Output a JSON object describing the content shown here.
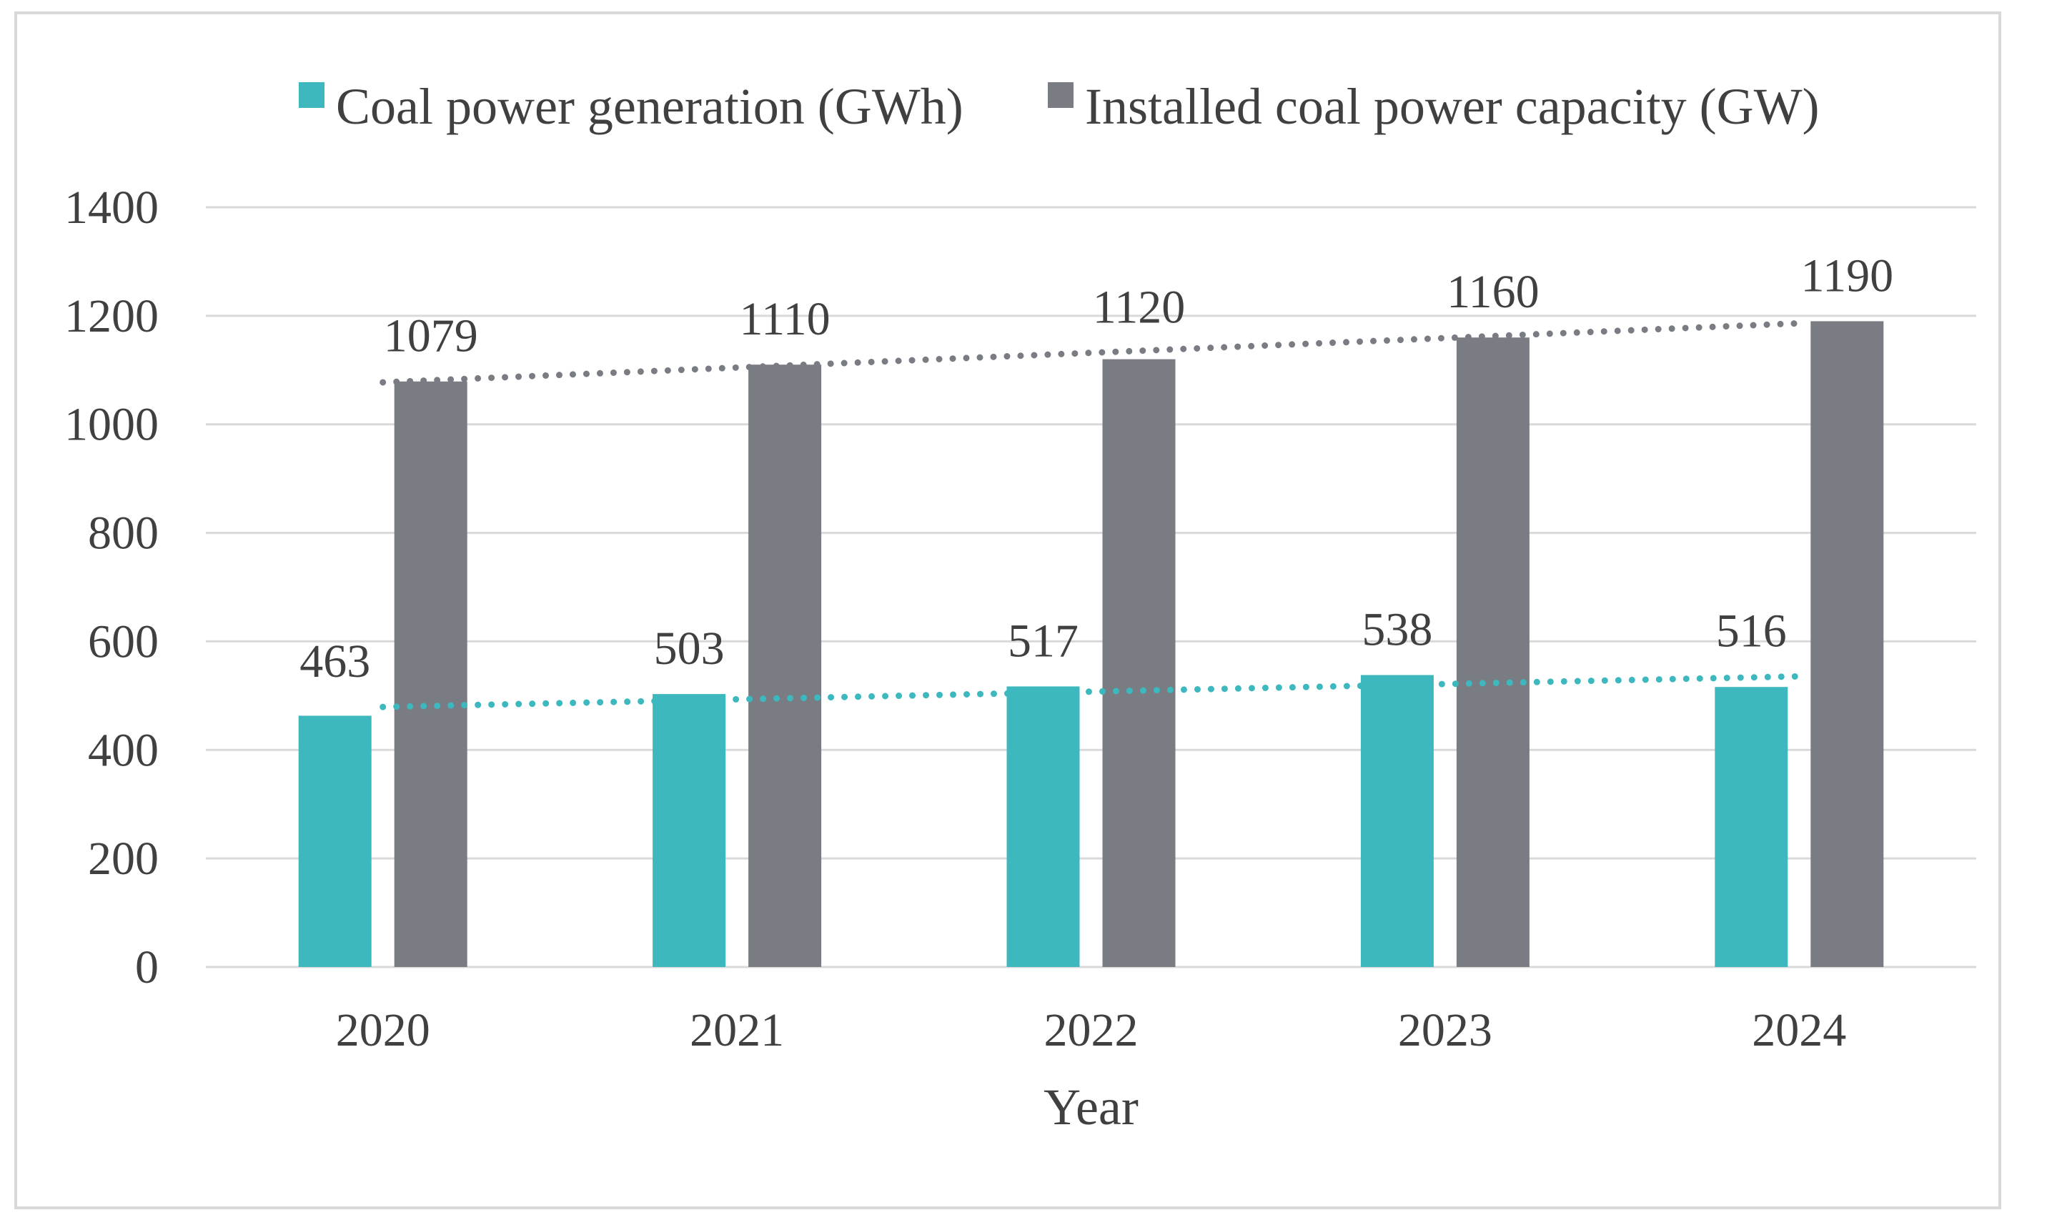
{
  "chart_data": {
    "type": "bar",
    "title": "",
    "xlabel": "Year",
    "ylabel": "",
    "categories": [
      "2020",
      "2021",
      "2022",
      "2023",
      "2024"
    ],
    "series": [
      {
        "name": "Coal power generation (GWh)",
        "color": "#3cb8be",
        "values": [
          463,
          503,
          517,
          538,
          516
        ],
        "labels": [
          "463",
          "503",
          "517",
          "538",
          "516"
        ],
        "trendline": {
          "type": "linear",
          "style": "dotted"
        }
      },
      {
        "name": "Installed coal power capacity (GW)",
        "color": "#7a7c84",
        "values": [
          1079,
          1110,
          1120,
          1160,
          1190
        ],
        "labels": [
          "1079",
          "1110",
          "1120",
          "1160",
          "1190"
        ],
        "trendline": {
          "type": "linear",
          "style": "dotted"
        }
      }
    ],
    "ylim": [
      0,
      1400
    ],
    "yticks": [
      0,
      200,
      400,
      600,
      800,
      1000,
      1200,
      1400
    ],
    "ytick_labels": [
      "0",
      "200",
      "400",
      "600",
      "800",
      "1000",
      "1200",
      "1400"
    ],
    "grid": true,
    "legend_position": "top",
    "colors": {
      "gridline": "#d9d9d9",
      "text": "#404040"
    }
  }
}
